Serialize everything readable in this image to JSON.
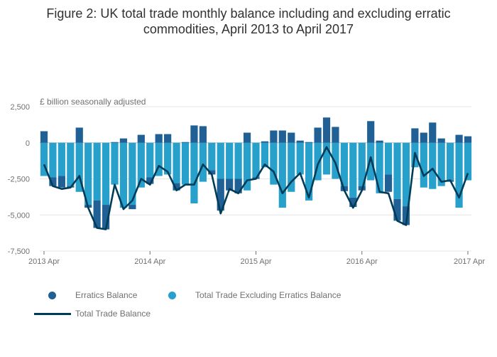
{
  "chart_data": {
    "type": "bar+line",
    "title": "Figure 2: UK total trade monthly balance including and excluding erratic commodities, April 2013 to April 2017",
    "title_line1": "Figure 2: UK total trade monthly balance including and excluding erratic",
    "title_line2": "commodities, April 2013 to April 2017",
    "unit_label": "£ billion seasonally adjusted",
    "ylim": [
      -7500,
      2500
    ],
    "yticks": [
      2500,
      0,
      -2500,
      -5000,
      -7500
    ],
    "ytick_labels": [
      "2,500",
      "0",
      "-2,500",
      "-5,000",
      "-7,500"
    ],
    "xticks": [
      {
        "index": 0,
        "label": "2013 Apr"
      },
      {
        "index": 12,
        "label": "2014 Apr"
      },
      {
        "index": 24,
        "label": "2015 Apr"
      },
      {
        "index": 36,
        "label": "2016 Apr"
      },
      {
        "index": 48,
        "label": "2017 Apr"
      }
    ],
    "stacked": true,
    "series": [
      {
        "name": "Erratics Balance",
        "color": "#206095",
        "type": "bar",
        "values": [
          800,
          -600,
          -800,
          -100,
          1050,
          -200,
          -1900,
          -1700,
          50,
          300,
          -300,
          550,
          -450,
          600,
          600,
          -500,
          50,
          1200,
          1150,
          -300,
          -2200,
          -800,
          -1000,
          700,
          -100,
          100,
          850,
          850,
          700,
          150,
          50,
          1050,
          1750,
          1100,
          -350,
          -650,
          -300,
          1500,
          150,
          -1200,
          -1500,
          -1300,
          1000,
          700,
          1400,
          300,
          -100,
          550,
          450
        ]
      },
      {
        "name": "Total Trade Excluding Erratics Balance",
        "color": "#27A0CC",
        "type": "bar",
        "values": [
          -2300,
          -2400,
          -2300,
          -3000,
          -3400,
          -4300,
          -4000,
          -4300,
          -2900,
          -4500,
          -4300,
          -3100,
          -2400,
          -2300,
          -2200,
          -2800,
          -2900,
          -4200,
          -2700,
          -1900,
          -2500,
          -2500,
          -2500,
          -3300,
          -2400,
          -1700,
          -2900,
          -4500,
          -3400,
          -2200,
          -4000,
          -2600,
          -2200,
          -2500,
          -3000,
          -3800,
          -3000,
          -2600,
          -3500,
          -2200,
          -3900,
          -4400,
          -1700,
          -3100,
          -3200,
          -3000,
          -2600,
          -4500,
          -2600
        ]
      },
      {
        "name": "Total Trade Balance",
        "color": "#003C57",
        "type": "line",
        "values": [
          -1500,
          -3000,
          -3200,
          -3100,
          -2300,
          -4500,
          -5900,
          -6000,
          -2900,
          -4600,
          -4000,
          -2500,
          -2900,
          -1600,
          -2000,
          -3300,
          -2900,
          -2900,
          -1500,
          -2200,
          -4900,
          -3200,
          -3500,
          -2600,
          -2500,
          -1500,
          -2000,
          -3500,
          -2700,
          -2100,
          -3800,
          -1500,
          -300,
          -1400,
          -3300,
          -4500,
          -3300,
          -1000,
          -3400,
          -3500,
          -5400,
          -5700,
          -700,
          -2300,
          -1800,
          -2700,
          -2600,
          -3800,
          -2100
        ]
      }
    ],
    "legend": [
      {
        "label": "Erratics Balance",
        "marker": "circle",
        "color": "#206095"
      },
      {
        "label": "Total Trade Excluding Erratics Balance",
        "marker": "circle",
        "color": "#27A0CC"
      },
      {
        "label": "Total Trade Balance",
        "marker": "line",
        "color": "#003C57"
      }
    ]
  }
}
